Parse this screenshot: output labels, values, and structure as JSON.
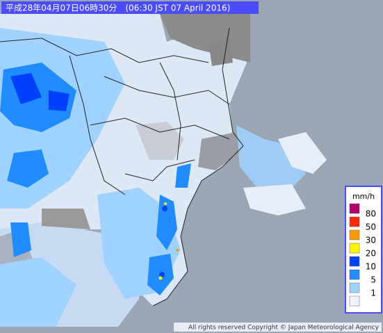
{
  "header": {
    "title": "平成28年04月07日06時30分　(06:30 JST 07 April 2016)"
  },
  "legend": {
    "unit": "mm/h",
    "items": [
      {
        "label": "80",
        "color": "#b4006e"
      },
      {
        "label": "50",
        "color": "#ff2800"
      },
      {
        "label": "30",
        "color": "#ff9900"
      },
      {
        "label": "20",
        "color": "#faf500"
      },
      {
        "label": "10",
        "color": "#0041ff"
      },
      {
        "label": "5",
        "color": "#218cff"
      },
      {
        "label": "1",
        "color": "#a0d2ff"
      }
    ],
    "none_color": "#f2f2ff"
  },
  "footer": {
    "copyright": "All rights reserved Copyright © Japan Meteorological Agency"
  }
}
